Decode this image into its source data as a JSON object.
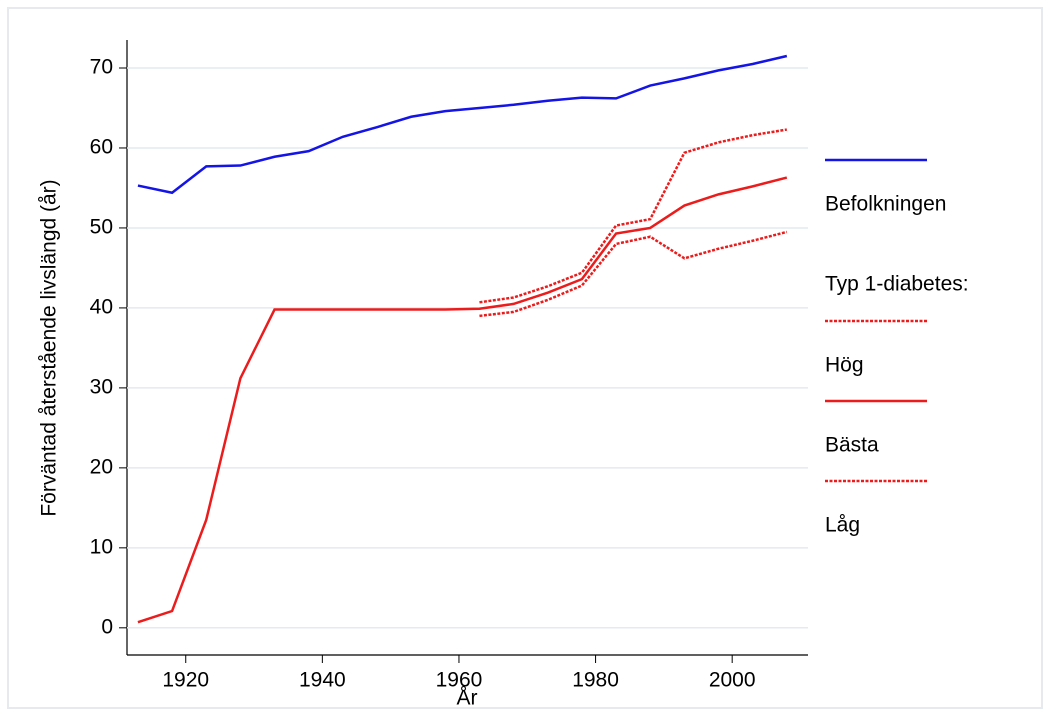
{
  "chart_data": {
    "type": "line",
    "xlabel": "År",
    "ylabel": "Förväntad återstående livslängd (år)",
    "x": [
      1913,
      1918,
      1923,
      1928,
      1933,
      1938,
      1943,
      1948,
      1953,
      1958,
      1963,
      1968,
      1973,
      1978,
      1983,
      1988,
      1993,
      1998,
      2003,
      2008
    ],
    "series": [
      {
        "name": "Befolkningen",
        "color": "#1414e6",
        "style": "solid",
        "values": [
          55.3,
          54.4,
          57.7,
          57.8,
          58.9,
          59.6,
          61.4,
          62.6,
          63.9,
          64.6,
          65.0,
          65.4,
          65.9,
          66.3,
          66.2,
          67.8,
          68.7,
          69.7,
          70.5,
          71.5
        ]
      },
      {
        "name": "Hög",
        "color": "#ec1c1c",
        "style": "dotted",
        "values": [
          null,
          null,
          null,
          null,
          null,
          null,
          null,
          null,
          null,
          null,
          40.7,
          41.3,
          42.7,
          44.4,
          50.3,
          51.1,
          59.4,
          60.7,
          61.6,
          62.3
        ]
      },
      {
        "name": "Bästa",
        "color": "#ec1c1c",
        "style": "solid",
        "values": [
          0.7,
          2.1,
          13.5,
          31.2,
          39.8,
          39.8,
          39.8,
          39.8,
          39.8,
          39.8,
          39.9,
          40.5,
          41.9,
          43.6,
          49.3,
          50.0,
          52.8,
          54.2,
          55.2,
          56.3
        ]
      },
      {
        "name": "Låg",
        "color": "#ec1c1c",
        "style": "dotted",
        "values": [
          null,
          null,
          null,
          null,
          null,
          null,
          null,
          null,
          null,
          null,
          39.0,
          39.5,
          41.0,
          42.8,
          48.0,
          48.9,
          46.2,
          47.4,
          48.4,
          49.5
        ]
      }
    ],
    "legend_title": "Typ 1-diabetes:",
    "legend": "right",
    "xlim": [
      1911.4,
      2011.1
    ],
    "xticks": [
      1920,
      1940,
      1960,
      1980,
      2000
    ],
    "ylim": [
      -3.4,
      73.5
    ],
    "yticks": [
      0,
      10,
      20,
      30,
      40,
      50,
      60,
      70
    ],
    "grid": true
  }
}
